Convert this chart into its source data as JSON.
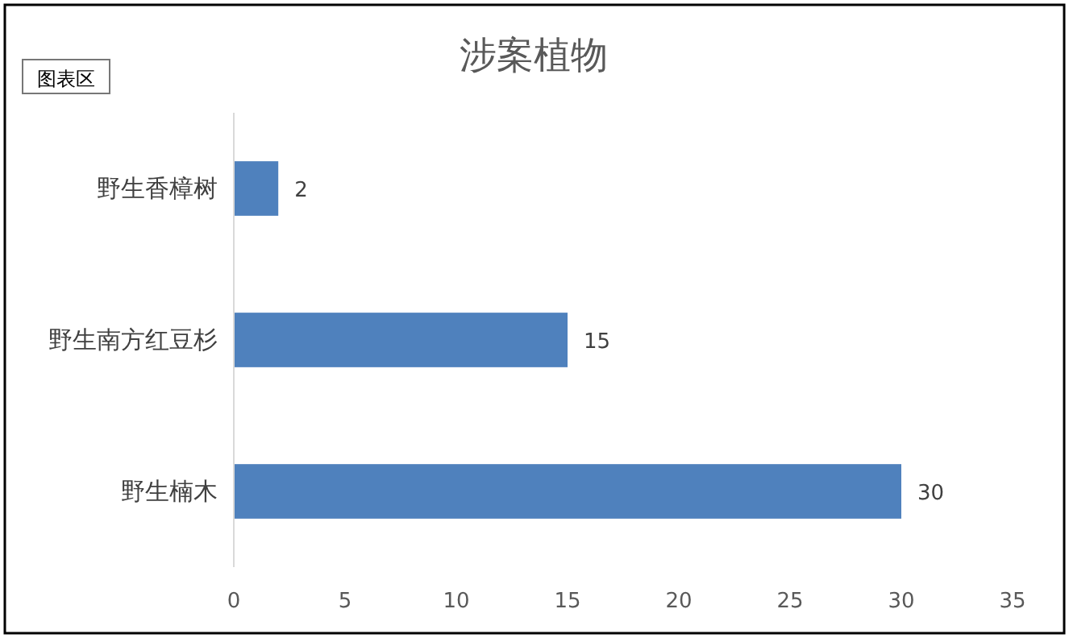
{
  "chart_data": {
    "type": "bar",
    "orientation": "horizontal",
    "title": "涉案植物",
    "categories": [
      "野生香樟树",
      "野生南方红豆杉",
      "野生楠木"
    ],
    "values": [
      2,
      15,
      30
    ],
    "color": "#4f81bd",
    "xlim": [
      0,
      35
    ],
    "xticks": [
      0,
      5,
      10,
      15,
      20,
      25,
      30,
      35
    ],
    "data_labels": true,
    "annotations": [
      "图表区"
    ]
  }
}
